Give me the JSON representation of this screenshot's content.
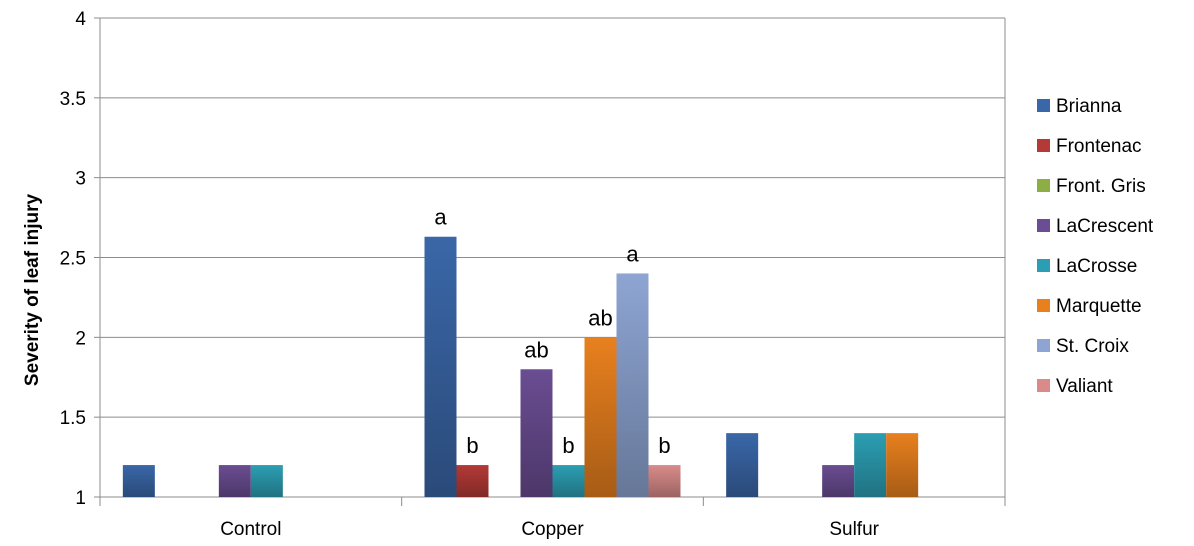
{
  "chart_data": {
    "type": "bar",
    "title": "",
    "xlabel": "",
    "ylabel": "Severity of leaf injury",
    "ylim": [
      1,
      4
    ],
    "yticks": [
      "1",
      "1.5",
      "2",
      "2.5",
      "3",
      "3.5",
      "4"
    ],
    "categories": [
      "Control",
      "Copper",
      "Sulfur"
    ],
    "grid": true,
    "legend_position": "right",
    "series": [
      {
        "name": "Brianna",
        "color": "#3A67A8",
        "values": [
          1.2,
          2.63,
          1.4
        ],
        "labels": [
          null,
          "a",
          null
        ]
      },
      {
        "name": "Frontenac",
        "color": "#B33A36",
        "values": [
          null,
          1.2,
          null
        ],
        "labels": [
          null,
          "b",
          null
        ]
      },
      {
        "name": "Front. Gris",
        "color": "#8CAE45",
        "values": [
          null,
          null,
          null
        ],
        "labels": [
          null,
          null,
          null
        ]
      },
      {
        "name": "LaCrescent",
        "color": "#6A4D92",
        "values": [
          1.2,
          1.8,
          1.2
        ],
        "labels": [
          null,
          "ab",
          null
        ]
      },
      {
        "name": "LaCrosse",
        "color": "#2C9EB3",
        "values": [
          1.2,
          1.2,
          1.4
        ],
        "labels": [
          null,
          "b",
          null
        ]
      },
      {
        "name": "Marquette",
        "color": "#E8801E",
        "values": [
          null,
          2.0,
          1.4
        ],
        "labels": [
          null,
          "ab",
          null
        ]
      },
      {
        "name": "St. Croix",
        "color": "#8EA5D3",
        "values": [
          null,
          2.4,
          null
        ],
        "labels": [
          null,
          "a",
          null
        ]
      },
      {
        "name": "Valiant",
        "color": "#D98B8A",
        "values": [
          null,
          1.2,
          null
        ],
        "labels": [
          null,
          "b",
          null
        ]
      }
    ]
  }
}
